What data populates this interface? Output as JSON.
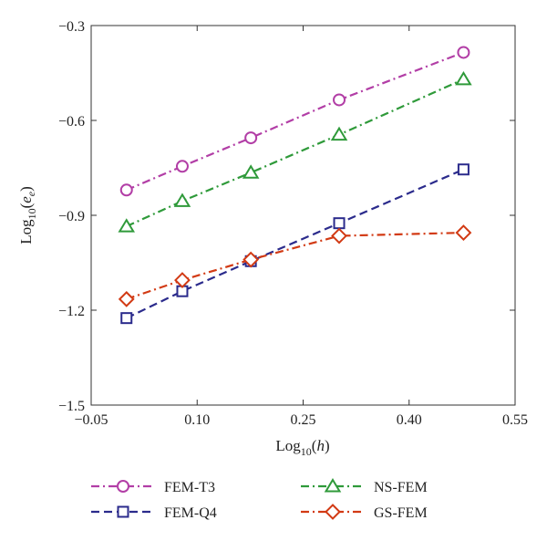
{
  "chart_data": {
    "type": "line",
    "xlabel": "Log10(h)",
    "ylabel": "Log10(ee)",
    "xlim": [
      -0.05,
      0.55
    ],
    "ylim": [
      -1.5,
      -0.3
    ],
    "x_ticks": [
      -0.05,
      0.1,
      0.25,
      0.4,
      0.55
    ],
    "x_tick_labels": [
      "−0.05",
      "0.10",
      "0.25",
      "0.40",
      "0.55"
    ],
    "y_ticks": [
      -0.3,
      -0.6,
      -0.9,
      -1.2,
      -1.5
    ],
    "y_tick_labels": [
      "−0.3",
      "−0.6",
      "−0.9",
      "−1.2",
      "−1.5"
    ],
    "grid": false,
    "legend": "below",
    "series": [
      {
        "name": "FEM-T3",
        "color": "#b23ea6",
        "marker": "circle",
        "dash": "dashdot",
        "x": [
          0.0,
          0.079,
          0.176,
          0.301,
          0.477
        ],
        "y": [
          -0.82,
          -0.745,
          -0.655,
          -0.535,
          -0.385
        ]
      },
      {
        "name": "NS-FEM",
        "color": "#2f9a3a",
        "marker": "triangle",
        "dash": "dashdot",
        "x": [
          0.0,
          0.079,
          0.176,
          0.301,
          0.477
        ],
        "y": [
          -0.935,
          -0.855,
          -0.765,
          -0.645,
          -0.47
        ]
      },
      {
        "name": "FEM-Q4",
        "color": "#2b2b8c",
        "marker": "square",
        "dash": "dash",
        "x": [
          0.0,
          0.079,
          0.176,
          0.301,
          0.477
        ],
        "y": [
          -1.225,
          -1.14,
          -1.045,
          -0.925,
          -0.755
        ]
      },
      {
        "name": "GS-FEM",
        "color": "#d23a14",
        "marker": "diamond",
        "dash": "dashdot",
        "x": [
          0.0,
          0.079,
          0.176,
          0.301,
          0.477
        ],
        "y": [
          -1.165,
          -1.105,
          -1.04,
          -0.965,
          -0.955
        ]
      }
    ],
    "legend_order": [
      "FEM-T3",
      "NS-FEM",
      "FEM-Q4",
      "GS-FEM"
    ]
  }
}
